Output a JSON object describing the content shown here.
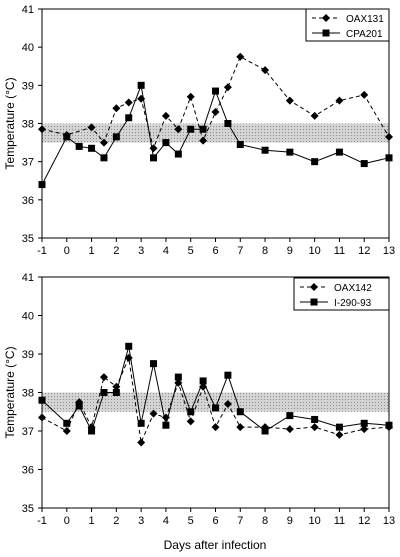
{
  "figure": {
    "xlabel": "Days after infection"
  },
  "chart_data": [
    {
      "type": "line",
      "ylabel": "Temperature (°C)",
      "xlabel": "",
      "xlim": [
        -1,
        13
      ],
      "ylim": [
        35,
        41
      ],
      "x_ticks": [
        "-1",
        "0",
        "1",
        "2",
        "3",
        "4",
        "5",
        "6",
        "7",
        "8",
        "9",
        "10",
        "11",
        "12",
        "13"
      ],
      "y_ticks": [
        "35",
        "36",
        "37",
        "38",
        "39",
        "40",
        "41"
      ],
      "normal_band": [
        37.5,
        38.0
      ],
      "legend_position": "top-right",
      "series": [
        {
          "name": "OAX131",
          "style": "dashed",
          "marker": "diamond",
          "color": "#000000",
          "x": [
            -1,
            0,
            1,
            1.5,
            2,
            2.5,
            3,
            3.5,
            4,
            4.5,
            5,
            5.5,
            6,
            6.5,
            7,
            8,
            9,
            10,
            11,
            12,
            13
          ],
          "y": [
            37.85,
            37.7,
            37.9,
            37.5,
            38.4,
            38.55,
            38.65,
            37.35,
            38.2,
            37.85,
            38.7,
            37.55,
            38.3,
            38.95,
            39.75,
            39.4,
            38.6,
            38.2,
            38.6,
            38.75,
            37.65
          ]
        },
        {
          "name": "CPA201",
          "style": "solid",
          "marker": "square",
          "color": "#000000",
          "x": [
            -1,
            0,
            0.5,
            1,
            1.5,
            2,
            2.5,
            3,
            3.5,
            4,
            4.5,
            5,
            5.5,
            6,
            6.5,
            7,
            8,
            9,
            10,
            11,
            12,
            13
          ],
          "y": [
            36.4,
            37.65,
            37.4,
            37.35,
            37.1,
            37.65,
            38.15,
            39.0,
            37.1,
            37.5,
            37.2,
            37.85,
            37.85,
            38.85,
            38.0,
            37.45,
            37.3,
            37.25,
            37.0,
            37.25,
            36.95,
            37.1
          ]
        }
      ]
    },
    {
      "type": "line",
      "ylabel": "Temperature (°C)",
      "xlabel": "Days after infection",
      "xlim": [
        -1,
        13
      ],
      "ylim": [
        35,
        41
      ],
      "x_ticks": [
        "-1",
        "0",
        "1",
        "2",
        "3",
        "4",
        "5",
        "6",
        "7",
        "8",
        "9",
        "10",
        "11",
        "12",
        "13"
      ],
      "y_ticks": [
        "35",
        "36",
        "37",
        "38",
        "39",
        "40",
        "41"
      ],
      "normal_band": [
        37.5,
        38.0
      ],
      "legend_position": "top-right",
      "series": [
        {
          "name": "OAX142",
          "style": "dashed",
          "marker": "diamond",
          "color": "#000000",
          "x": [
            -1,
            0,
            0.5,
            1,
            1.5,
            2,
            2.5,
            3,
            3.5,
            4,
            4.5,
            5,
            5.5,
            6,
            6.5,
            7,
            8,
            9,
            10,
            11,
            12,
            13
          ],
          "y": [
            37.35,
            37.0,
            37.75,
            37.1,
            38.4,
            38.15,
            38.9,
            36.7,
            37.45,
            37.35,
            38.25,
            37.25,
            38.15,
            37.1,
            37.7,
            37.1,
            37.1,
            37.05,
            37.1,
            36.9,
            37.05,
            37.1
          ]
        },
        {
          "name": "I-290-93",
          "style": "solid",
          "marker": "square",
          "color": "#000000",
          "x": [
            -1,
            0,
            0.5,
            1,
            1.5,
            2,
            2.5,
            3,
            3.5,
            4,
            4.5,
            5,
            5.5,
            6,
            6.5,
            7,
            8,
            9,
            10,
            11,
            12,
            13
          ],
          "y": [
            37.8,
            37.2,
            37.65,
            37.0,
            38.0,
            38.0,
            39.2,
            37.2,
            38.75,
            37.15,
            38.4,
            37.5,
            38.3,
            37.6,
            38.45,
            37.5,
            37.0,
            37.4,
            37.3,
            37.1,
            37.2,
            37.15
          ]
        }
      ]
    }
  ]
}
